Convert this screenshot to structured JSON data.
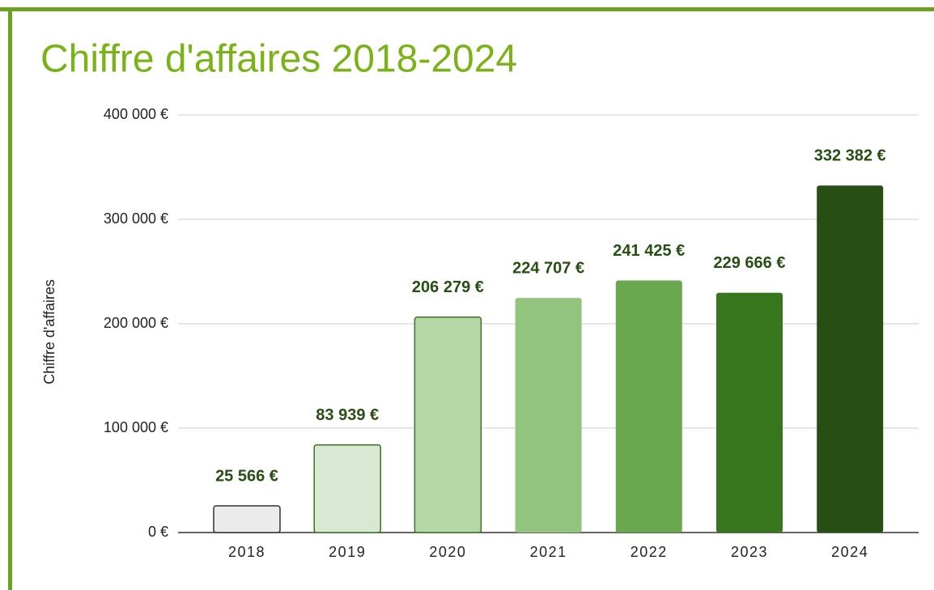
{
  "chart_data": {
    "type": "bar",
    "title": "Chiffre d'affaires 2018-2024",
    "y_label": "Chiffre d'affaires",
    "categories": [
      "2018",
      "2019",
      "2020",
      "2021",
      "2022",
      "2023",
      "2024"
    ],
    "values": [
      25566,
      83939,
      206279,
      224707,
      241425,
      229666,
      332382
    ],
    "value_labels": [
      "25 566 €",
      "83 939 €",
      "206 279 €",
      "224 707 €",
      "241 425 €",
      "229 666 €",
      "332 382 €"
    ],
    "colors": [
      "#ebebeb",
      "#d9e8d3",
      "#b6d7a8",
      "#93c47d",
      "#6aa84f",
      "#38761d",
      "#274e13"
    ],
    "ylim": [
      0,
      400000
    ],
    "yticks": [
      {
        "value": 0,
        "label": "0 €"
      },
      {
        "value": 100000,
        "label": "100 000 €"
      },
      {
        "value": 200000,
        "label": "200 000 €"
      },
      {
        "value": 300000,
        "label": "300 000 €"
      },
      {
        "value": 400000,
        "label": "400 000 €"
      }
    ],
    "grid": true
  }
}
